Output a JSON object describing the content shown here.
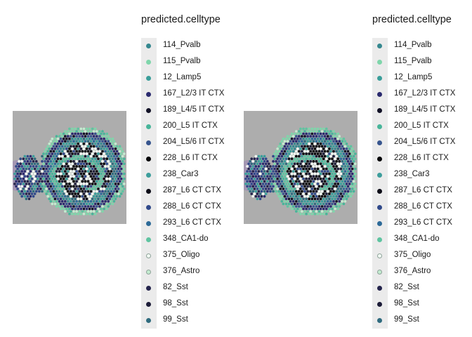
{
  "chart_data": [
    {
      "type": "scatter",
      "title": "",
      "legend_title": "predicted.celltype",
      "legend_position": "right",
      "background": "tissue-image",
      "series": [
        {
          "name": "114_Pvalb",
          "color": "#35888f"
        },
        {
          "name": "115_Pvalb",
          "color": "#7fd6ab"
        },
        {
          "name": "12_Lamp5",
          "color": "#3a9e9a"
        },
        {
          "name": "167_L2/3 IT CTX",
          "color": "#2a2a6e"
        },
        {
          "name": "189_L4/5 IT CTX",
          "color": "#111126"
        },
        {
          "name": "200_L5 IT CTX",
          "color": "#48b59a"
        },
        {
          "name": "204_L5/6 IT CTX",
          "color": "#37558e"
        },
        {
          "name": "228_L6 IT CTX",
          "color": "#050508"
        },
        {
          "name": "238_Car3",
          "color": "#3d9e9c"
        },
        {
          "name": "287_L6 CT CTX",
          "color": "#0b0b16"
        },
        {
          "name": "288_L6 CT CTX",
          "color": "#30498a"
        },
        {
          "name": "293_L6 CT CTX",
          "color": "#2d6a98"
        },
        {
          "name": "348_CA1-do",
          "color": "#5fc4a1"
        },
        {
          "name": "375_Oligo",
          "color": "#f3fbf4"
        },
        {
          "name": "376_Astro",
          "color": "#c3ecd0"
        },
        {
          "name": "82_Sst",
          "color": "#24244c"
        },
        {
          "name": "98_Sst",
          "color": "#1c1c38"
        },
        {
          "name": "99_Sst",
          "color": "#2f6b7e"
        }
      ]
    },
    {
      "type": "scatter",
      "title": "",
      "legend_title": "predicted.celltype",
      "legend_position": "right",
      "background": "tissue-image",
      "series": [
        {
          "name": "114_Pvalb",
          "color": "#35888f"
        },
        {
          "name": "115_Pvalb",
          "color": "#7fd6ab"
        },
        {
          "name": "12_Lamp5",
          "color": "#3a9e9a"
        },
        {
          "name": "167_L2/3 IT CTX",
          "color": "#2a2a6e"
        },
        {
          "name": "189_L4/5 IT CTX",
          "color": "#111126"
        },
        {
          "name": "200_L5 IT CTX",
          "color": "#48b59a"
        },
        {
          "name": "204_L5/6 IT CTX",
          "color": "#37558e"
        },
        {
          "name": "228_L6 IT CTX",
          "color": "#050508"
        },
        {
          "name": "238_Car3",
          "color": "#3d9e9c"
        },
        {
          "name": "287_L6 CT CTX",
          "color": "#0b0b16"
        },
        {
          "name": "288_L6 CT CTX",
          "color": "#30498a"
        },
        {
          "name": "293_L6 CT CTX",
          "color": "#2d6a98"
        },
        {
          "name": "348_CA1-do",
          "color": "#5fc4a1"
        },
        {
          "name": "375_Oligo",
          "color": "#f3fbf4"
        },
        {
          "name": "376_Astro",
          "color": "#c3ecd0"
        },
        {
          "name": "82_Sst",
          "color": "#24244c"
        },
        {
          "name": "98_Sst",
          "color": "#1c1c38"
        },
        {
          "name": "99_Sst",
          "color": "#2f6b7e"
        }
      ]
    }
  ]
}
